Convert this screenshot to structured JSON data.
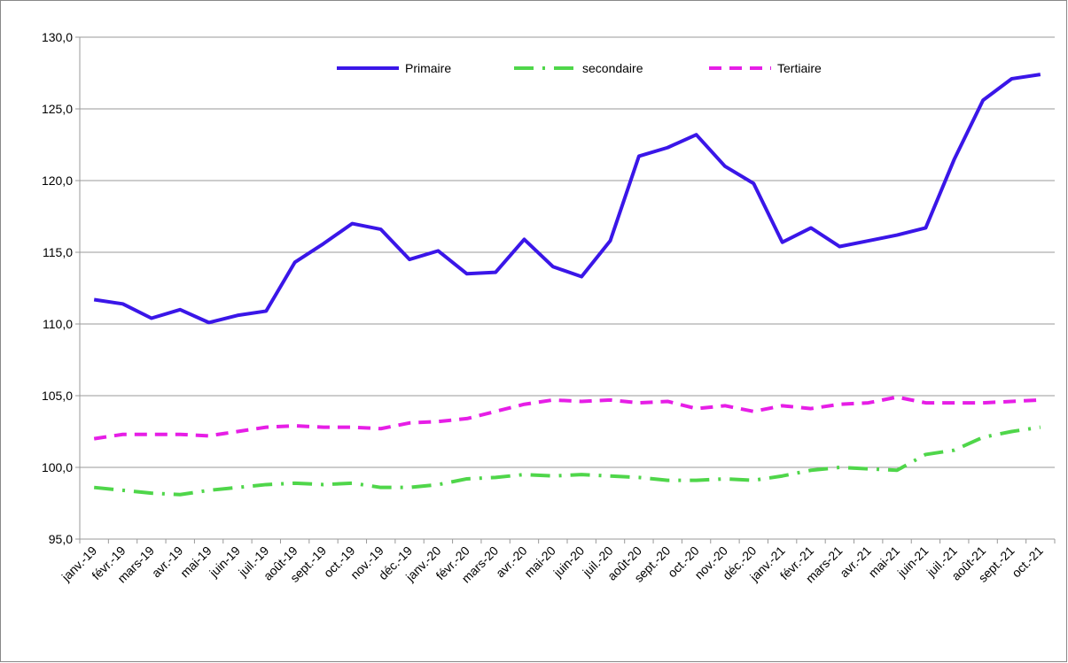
{
  "chart_data": {
    "type": "line",
    "categories": [
      "janv.-19",
      "févr.-19",
      "mars-19",
      "avr.-19",
      "mai-19",
      "juin-19",
      "juil.-19",
      "août-19",
      "sept.-19",
      "oct.-19",
      "nov.-19",
      "déc.-19",
      "janv.-20",
      "févr.-20",
      "mars-20",
      "avr.-20",
      "mai-20",
      "juin-20",
      "juil.-20",
      "août-20",
      "sept.-20",
      "oct.-20",
      "nov.-20",
      "déc.-20",
      "janv.-21",
      "févr.-21",
      "mars-21",
      "avr.-21",
      "mai-21",
      "juin-21",
      "juil.-21",
      "août-21",
      "sept.-21",
      "oct.-21"
    ],
    "series": [
      {
        "name": "Primaire",
        "color": "#3a16e8",
        "dash": "solid",
        "values": [
          111.7,
          111.4,
          110.4,
          111.0,
          110.1,
          110.6,
          110.9,
          114.3,
          115.6,
          117.0,
          116.6,
          114.5,
          115.1,
          113.5,
          113.6,
          115.9,
          114.0,
          113.3,
          115.8,
          121.7,
          122.3,
          123.2,
          121.0,
          119.8,
          115.7,
          116.7,
          115.4,
          115.8,
          116.2,
          116.7,
          121.5,
          125.6,
          127.1,
          127.4
        ]
      },
      {
        "name": "secondaire",
        "color": "#4fd64a",
        "dash": "dashdot",
        "values": [
          98.6,
          98.4,
          98.2,
          98.1,
          98.4,
          98.6,
          98.8,
          98.9,
          98.8,
          98.9,
          98.6,
          98.6,
          98.8,
          99.2,
          99.3,
          99.5,
          99.4,
          99.5,
          99.4,
          99.3,
          99.1,
          99.1,
          99.2,
          99.1,
          99.4,
          99.8,
          100.0,
          99.9,
          99.8,
          100.9,
          101.2,
          102.1,
          102.5,
          102.8
        ]
      },
      {
        "name": "Tertiaire",
        "color": "#e61ee6",
        "dash": "dash",
        "values": [
          102.0,
          102.3,
          102.3,
          102.3,
          102.2,
          102.5,
          102.8,
          102.9,
          102.8,
          102.8,
          102.7,
          103.1,
          103.2,
          103.4,
          103.9,
          104.4,
          104.7,
          104.6,
          104.7,
          104.5,
          104.6,
          104.1,
          104.3,
          103.9,
          104.3,
          104.1,
          104.4,
          104.5,
          104.9,
          104.5,
          104.5,
          104.5,
          104.6,
          104.7
        ]
      }
    ],
    "ylim": [
      95,
      130
    ],
    "yticks": [
      {
        "value": 95,
        "label": "95,0"
      },
      {
        "value": 100,
        "label": "100,0"
      },
      {
        "value": 105,
        "label": "105,0"
      },
      {
        "value": 110,
        "label": "110,0"
      },
      {
        "value": 115,
        "label": "115,0"
      },
      {
        "value": 120,
        "label": "120,0"
      },
      {
        "value": 125,
        "label": "125,0"
      },
      {
        "value": 130,
        "label": "130,0"
      }
    ],
    "grid": true,
    "legend": "top"
  }
}
